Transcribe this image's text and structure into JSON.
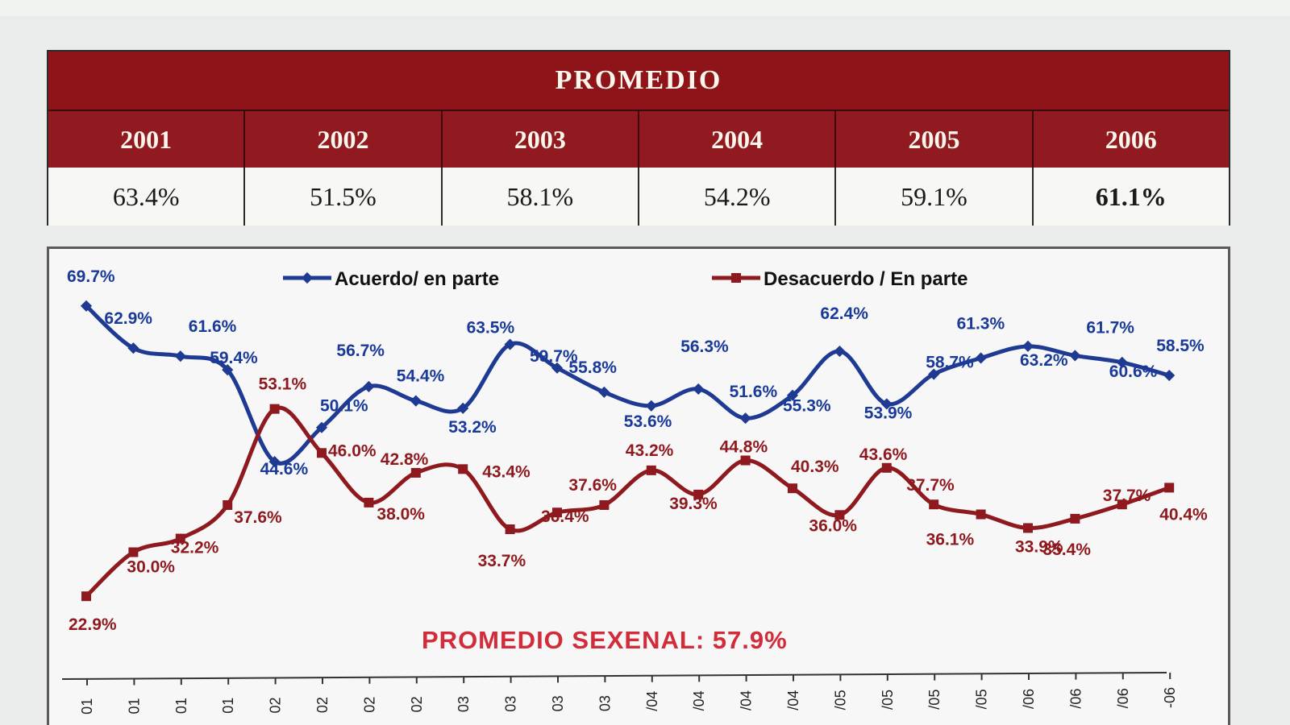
{
  "summary": {
    "title": "PROMEDIO",
    "years": [
      "2001",
      "2002",
      "2003",
      "2004",
      "2005",
      "2006"
    ],
    "values": [
      "63.4%",
      "51.5%",
      "58.1%",
      "54.2%",
      "59.1%",
      "61.1%"
    ]
  },
  "chart_data": {
    "type": "line",
    "legend_placement": "top",
    "grid": false,
    "ylim": [
      15,
      75
    ],
    "annotation": "PROMEDIO SEXENAL: 57.9%",
    "x_tick_labels": [
      "01",
      "01",
      "01",
      "01",
      "02",
      "02",
      "02",
      "02",
      "03",
      "03",
      "03",
      "03",
      "/04",
      "/04",
      "/04",
      "/04",
      "/05",
      "/05",
      "/05",
      "/05",
      "/06",
      "/06",
      "/06",
      "-06"
    ],
    "series": [
      {
        "name": "Acuerdo/ en parte",
        "color": "#1f3a93",
        "values": [
          69.7,
          62.9,
          61.6,
          59.4,
          44.6,
          50.1,
          56.7,
          54.4,
          53.2,
          63.5,
          59.7,
          55.8,
          53.6,
          56.3,
          51.6,
          55.3,
          62.4,
          53.9,
          58.7,
          61.3,
          63.2,
          61.7,
          60.6,
          58.5
        ],
        "labels": [
          "69.7%",
          "62.9%",
          "61.6%",
          "59.4%",
          "44.6%",
          "50.1%",
          "56.7%",
          "54.4%",
          "53.2%",
          "63.5%",
          "59.7%",
          "55.8%",
          "53.6%",
          "56.3%",
          "51.6%",
          "55.3%",
          "62.4%",
          "53.9%",
          "58.7%",
          "61.3%",
          "63.2%",
          "61.7%",
          "60.6%",
          "58.5%"
        ]
      },
      {
        "name": "Desacuerdo / En parte",
        "color": "#8e1a1f",
        "values": [
          22.9,
          30.0,
          32.2,
          37.6,
          53.1,
          46.0,
          38.0,
          42.8,
          43.4,
          33.7,
          36.4,
          37.6,
          43.2,
          39.3,
          44.8,
          40.3,
          36.0,
          43.6,
          37.7,
          36.1,
          33.9,
          35.4,
          37.7,
          40.4
        ],
        "labels": [
          "22.9%",
          "30.0%",
          "32.2%",
          "37.6%",
          "53.1%",
          "46.0%",
          "38.0%",
          "42.8%",
          "43.4%",
          "33.7%",
          "36.4%",
          "37.6%",
          "43.2%",
          "39.3%",
          "44.8%",
          "40.3%",
          "36.0%",
          "43.6%",
          "37.7%",
          "36.1%",
          "33.9%",
          "35.4%",
          "37.7%",
          "40.4%"
        ]
      }
    ]
  }
}
